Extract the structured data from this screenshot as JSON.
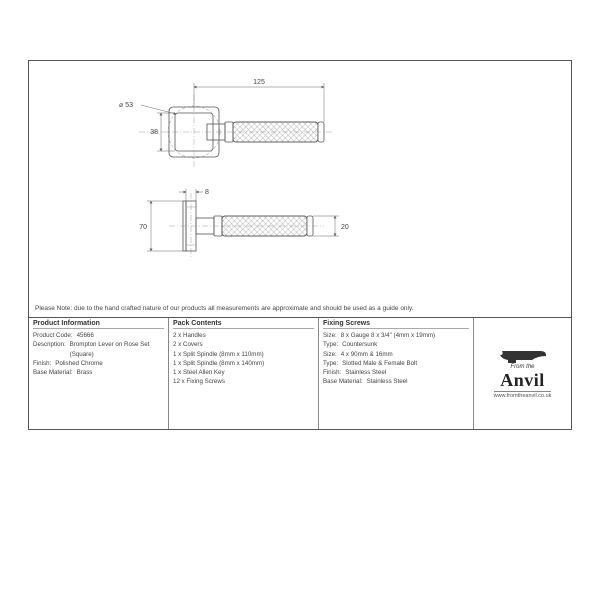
{
  "note": "Please Note: due to the hand crafted nature of our products all measurements are approximate and should be used as a guide only.",
  "dimensions": {
    "width_top": "125",
    "rose_size": "38",
    "diameter": "⌀ 53",
    "depth": "8",
    "height": "70",
    "lever_h": "20"
  },
  "product_info": {
    "title": "Product Information",
    "rows": [
      {
        "k": "Product Code:",
        "v": "45666"
      },
      {
        "k": "Description:",
        "v": "Brompton Lever on Rose Set (Square)"
      },
      {
        "k": "Finish:",
        "v": "Polished Chrome"
      },
      {
        "k": "Base Material:",
        "v": "Brass"
      }
    ]
  },
  "pack_contents": {
    "title": "Pack Contents",
    "rows": [
      {
        "v": "2 x Handles"
      },
      {
        "v": "2 x Covers"
      },
      {
        "v": "1 x Split Spindle (8mm x 110mm)"
      },
      {
        "v": "1 x Split Spindle (8mm x 140mm)"
      },
      {
        "v": "1 x Steel Allen Key"
      },
      {
        "v": "12 x Fixing Screws"
      }
    ]
  },
  "fixing_screws": {
    "title": "Fixing Screws",
    "rows": [
      {
        "k": "Size:",
        "v": "8 x Gauge 8 x 3/4\" (4mm x 19mm)"
      },
      {
        "k": "Type:",
        "v": "Countersunk"
      },
      {
        "k": "Size:",
        "v": "4 x 90mm & 16mm"
      },
      {
        "k": "Type:",
        "v": "Slotted Male & Female Bolt"
      },
      {
        "k": "Finish:",
        "v": "Stainless Steel"
      },
      {
        "k": "Base Material:",
        "v": "Stainless Steel"
      }
    ]
  },
  "logo": {
    "top": "From the",
    "main": "Anvil",
    "url": "www.fromtheanvil.co.uk"
  },
  "style": {
    "stroke": "#555555",
    "thin_stroke": "#888888",
    "dim_stroke": "#666666",
    "text_color": "#444444",
    "hatch_color": "#777777",
    "line_w": 0.8,
    "thin_w": 0.5,
    "dim_font": 7
  },
  "col_widths": {
    "c1": "140px",
    "c2": "150px",
    "c3": "155px"
  }
}
